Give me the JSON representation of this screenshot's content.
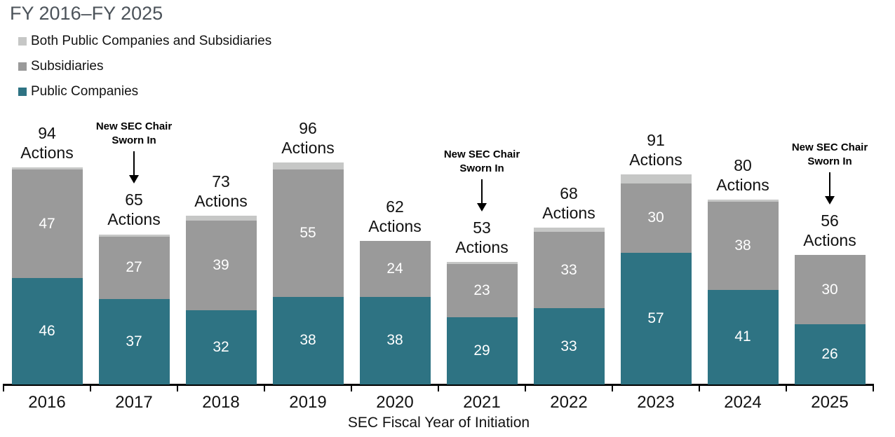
{
  "title": "FY 2016–FY 2025",
  "legend": {
    "items": [
      {
        "label": "Both Public Companies and Subsidiaries",
        "color": "#C6C7C6"
      },
      {
        "label": "Subsidiaries",
        "color": "#9A9A9A"
      },
      {
        "label": "Public Companies",
        "color": "#2E7383"
      }
    ]
  },
  "chart_data": {
    "type": "bar",
    "stacked": true,
    "title": "FY 2016–FY 2025",
    "xlabel": "SEC Fiscal Year of Initiation",
    "ylabel": "",
    "ylim": [
      0,
      100
    ],
    "grid": false,
    "legend_position": "top-left",
    "categories": [
      "2016",
      "2017",
      "2018",
      "2019",
      "2020",
      "2021",
      "2022",
      "2023",
      "2024",
      "2025"
    ],
    "series": [
      {
        "name": "Public Companies",
        "color": "#2E7383",
        "label_color": "#ffffff",
        "values": [
          46,
          37,
          32,
          38,
          38,
          29,
          33,
          57,
          41,
          26
        ],
        "show_labels": true
      },
      {
        "name": "Subsidiaries",
        "color": "#9A9A9A",
        "label_color": "#ffffff",
        "values": [
          47,
          27,
          39,
          55,
          24,
          23,
          33,
          30,
          38,
          30
        ],
        "show_labels": true
      },
      {
        "name": "Both Public Companies and Subsidiaries",
        "color": "#C6C7C6",
        "label_color": "#ffffff",
        "values": [
          1,
          1,
          2,
          3,
          0,
          1,
          2,
          4,
          1,
          0
        ],
        "show_labels": false
      }
    ],
    "totals": [
      94,
      65,
      73,
      96,
      62,
      53,
      68,
      91,
      80,
      56
    ],
    "total_suffix": "Actions",
    "annotations": [
      {
        "category": "2017",
        "text": "New SEC Chair Sworn In"
      },
      {
        "category": "2021",
        "text": "New SEC Chair Sworn In"
      },
      {
        "category": "2025",
        "text": "New SEC Chair Sworn In"
      }
    ]
  }
}
